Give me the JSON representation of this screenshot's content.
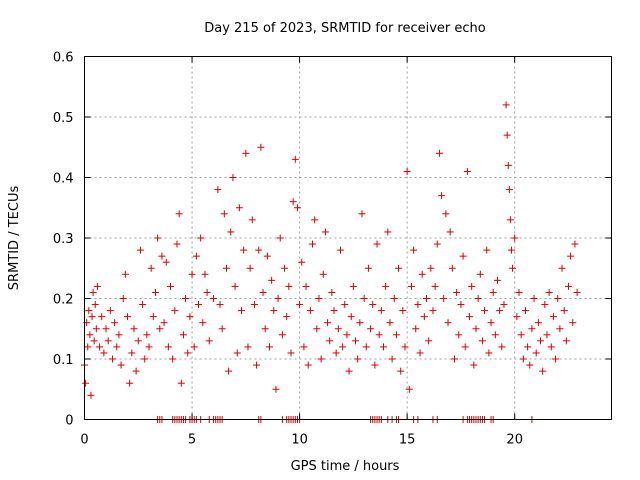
{
  "chart_data": {
    "type": "scatter",
    "title": "Day 215 of 2023, SRMTID for receiver echo",
    "xlabel": "GPS time / hours",
    "ylabel": "SRMTID / TECUs",
    "xlim": [
      0,
      24.5
    ],
    "ylim": [
      0,
      0.6
    ],
    "xticks": [
      0,
      5,
      10,
      15,
      20
    ],
    "xtick_labels": [
      "0",
      "5",
      "10",
      "15",
      "20"
    ],
    "yticks": [
      0,
      0.1,
      0.2,
      0.3,
      0.4,
      0.5,
      0.6
    ],
    "ytick_labels": [
      "0",
      "0.1",
      "0.2",
      "0.3",
      "0.4",
      "0.5",
      "0.6"
    ],
    "grid": true,
    "marker": "+",
    "color": "#dd0000",
    "series": [
      {
        "name": "SRMTID",
        "points": [
          [
            0.0,
            0.09
          ],
          [
            0.05,
            0.06
          ],
          [
            0.1,
            0.16
          ],
          [
            0.15,
            0.12
          ],
          [
            0.2,
            0.18
          ],
          [
            0.25,
            0.14
          ],
          [
            0.3,
            0.04
          ],
          [
            0.35,
            0.17
          ],
          [
            0.4,
            0.21
          ],
          [
            0.45,
            0.13
          ],
          [
            0.5,
            0.19
          ],
          [
            0.55,
            0.15
          ],
          [
            0.6,
            0.22
          ],
          [
            0.7,
            0.12
          ],
          [
            0.8,
            0.17
          ],
          [
            0.9,
            0.11
          ],
          [
            1.0,
            0.15
          ],
          [
            1.1,
            0.13
          ],
          [
            1.2,
            0.18
          ],
          [
            1.3,
            0.1
          ],
          [
            1.4,
            0.16
          ],
          [
            1.5,
            0.12
          ],
          [
            1.6,
            0.14
          ],
          [
            1.7,
            0.09
          ],
          [
            1.8,
            0.2
          ],
          [
            1.9,
            0.24
          ],
          [
            2.0,
            0.17
          ],
          [
            2.1,
            0.06
          ],
          [
            2.2,
            0.11
          ],
          [
            2.3,
            0.15
          ],
          [
            2.4,
            0.08
          ],
          [
            2.5,
            0.13
          ],
          [
            2.6,
            0.28
          ],
          [
            2.7,
            0.19
          ],
          [
            2.8,
            0.1
          ],
          [
            2.9,
            0.14
          ],
          [
            3.0,
            0.12
          ],
          [
            3.1,
            0.25
          ],
          [
            3.2,
            0.17
          ],
          [
            3.3,
            0.21
          ],
          [
            3.4,
            0.3
          ],
          [
            3.5,
            0.15
          ],
          [
            3.6,
            0.27
          ],
          [
            3.7,
            0.16
          ],
          [
            3.8,
            0.26
          ],
          [
            3.9,
            0.12
          ],
          [
            4.0,
            0.22
          ],
          [
            4.1,
            0.1
          ],
          [
            4.2,
            0.18
          ],
          [
            4.3,
            0.29
          ],
          [
            4.4,
            0.34
          ],
          [
            4.5,
            0.06
          ],
          [
            4.6,
            0.14
          ],
          [
            4.7,
            0.2
          ],
          [
            4.8,
            0.11
          ],
          [
            4.9,
            0.17
          ],
          [
            5.0,
            0.24
          ],
          [
            5.1,
            0.12
          ],
          [
            5.2,
            0.27
          ],
          [
            5.3,
            0.19
          ],
          [
            5.4,
            0.3
          ],
          [
            5.5,
            0.16
          ],
          [
            5.6,
            0.24
          ],
          [
            5.7,
            0.21
          ],
          [
            5.8,
            0.13
          ],
          [
            6.0,
            0.2
          ],
          [
            6.2,
            0.38
          ],
          [
            6.3,
            0.19
          ],
          [
            6.4,
            0.15
          ],
          [
            6.5,
            0.34
          ],
          [
            6.6,
            0.25
          ],
          [
            6.7,
            0.08
          ],
          [
            6.8,
            0.31
          ],
          [
            6.9,
            0.4
          ],
          [
            7.0,
            0.22
          ],
          [
            7.1,
            0.11
          ],
          [
            7.2,
            0.35
          ],
          [
            7.3,
            0.18
          ],
          [
            7.4,
            0.28
          ],
          [
            7.5,
            0.44
          ],
          [
            7.6,
            0.12
          ],
          [
            7.7,
            0.25
          ],
          [
            7.8,
            0.33
          ],
          [
            7.9,
            0.19
          ],
          [
            8.0,
            0.09
          ],
          [
            8.1,
            0.28
          ],
          [
            8.2,
            0.45
          ],
          [
            8.3,
            0.21
          ],
          [
            8.4,
            0.15
          ],
          [
            8.5,
            0.27
          ],
          [
            8.6,
            0.12
          ],
          [
            8.7,
            0.23
          ],
          [
            8.8,
            0.18
          ],
          [
            8.9,
            0.05
          ],
          [
            9.0,
            0.2
          ],
          [
            9.1,
            0.3
          ],
          [
            9.2,
            0.14
          ],
          [
            9.3,
            0.25
          ],
          [
            9.4,
            0.17
          ],
          [
            9.5,
            0.22
          ],
          [
            9.6,
            0.11
          ],
          [
            9.7,
            0.36
          ],
          [
            9.8,
            0.43
          ],
          [
            9.9,
            0.35
          ],
          [
            10.0,
            0.19
          ],
          [
            10.1,
            0.26
          ],
          [
            10.2,
            0.12
          ],
          [
            10.3,
            0.22
          ],
          [
            10.4,
            0.09
          ],
          [
            10.5,
            0.18
          ],
          [
            10.6,
            0.29
          ],
          [
            10.7,
            0.33
          ],
          [
            10.8,
            0.15
          ],
          [
            10.9,
            0.2
          ],
          [
            11.0,
            0.1
          ],
          [
            11.1,
            0.24
          ],
          [
            11.2,
            0.31
          ],
          [
            11.3,
            0.16
          ],
          [
            11.4,
            0.13
          ],
          [
            11.5,
            0.21
          ],
          [
            11.6,
            0.18
          ],
          [
            11.7,
            0.11
          ],
          [
            11.8,
            0.15
          ],
          [
            11.9,
            0.28
          ],
          [
            12.0,
            0.12
          ],
          [
            12.1,
            0.19
          ],
          [
            12.2,
            0.14
          ],
          [
            12.3,
            0.08
          ],
          [
            12.4,
            0.17
          ],
          [
            12.5,
            0.22
          ],
          [
            12.6,
            0.13
          ],
          [
            12.7,
            0.1
          ],
          [
            12.8,
            0.16
          ],
          [
            12.9,
            0.34
          ],
          [
            13.0,
            0.2
          ],
          [
            13.1,
            0.12
          ],
          [
            13.2,
            0.25
          ],
          [
            13.3,
            0.15
          ],
          [
            13.4,
            0.19
          ],
          [
            13.5,
            0.09
          ],
          [
            13.6,
            0.29
          ],
          [
            13.7,
            0.14
          ],
          [
            13.8,
            0.18
          ],
          [
            13.9,
            0.12
          ],
          [
            14.0,
            0.22
          ],
          [
            14.1,
            0.31
          ],
          [
            14.2,
            0.16
          ],
          [
            14.3,
            0.1
          ],
          [
            14.4,
            0.2
          ],
          [
            14.5,
            0.14
          ],
          [
            14.6,
            0.25
          ],
          [
            14.7,
            0.08
          ],
          [
            14.8,
            0.18
          ],
          [
            14.9,
            0.12
          ],
          [
            15.0,
            0.41
          ],
          [
            15.1,
            0.05
          ],
          [
            15.2,
            0.22
          ],
          [
            15.3,
            0.28
          ],
          [
            15.4,
            0.15
          ],
          [
            15.5,
            0.19
          ],
          [
            15.6,
            0.11
          ],
          [
            15.7,
            0.24
          ],
          [
            15.8,
            0.17
          ],
          [
            15.9,
            0.2
          ],
          [
            16.0,
            0.13
          ],
          [
            16.1,
            0.25
          ],
          [
            16.2,
            0.18
          ],
          [
            16.3,
            0.22
          ],
          [
            16.4,
            0.29
          ],
          [
            16.5,
            0.44
          ],
          [
            16.6,
            0.37
          ],
          [
            16.7,
            0.2
          ],
          [
            16.8,
            0.34
          ],
          [
            16.9,
            0.16
          ],
          [
            17.0,
            0.31
          ],
          [
            17.1,
            0.25
          ],
          [
            17.2,
            0.1
          ],
          [
            17.3,
            0.21
          ],
          [
            17.4,
            0.14
          ],
          [
            17.5,
            0.19
          ],
          [
            17.6,
            0.27
          ],
          [
            17.7,
            0.12
          ],
          [
            17.8,
            0.41
          ],
          [
            17.9,
            0.17
          ],
          [
            18.0,
            0.22
          ],
          [
            18.1,
            0.09
          ],
          [
            18.2,
            0.15
          ],
          [
            18.3,
            0.2
          ],
          [
            18.4,
            0.24
          ],
          [
            18.5,
            0.13
          ],
          [
            18.6,
            0.18
          ],
          [
            18.7,
            0.28
          ],
          [
            18.8,
            0.11
          ],
          [
            18.9,
            0.16
          ],
          [
            19.0,
            0.21
          ],
          [
            19.1,
            0.14
          ],
          [
            19.2,
            0.23
          ],
          [
            19.3,
            0.18
          ],
          [
            19.4,
            0.12
          ],
          [
            19.5,
            0.19
          ],
          [
            19.6,
            0.52
          ],
          [
            19.65,
            0.47
          ],
          [
            19.7,
            0.42
          ],
          [
            19.75,
            0.38
          ],
          [
            19.8,
            0.33
          ],
          [
            19.85,
            0.28
          ],
          [
            19.9,
            0.25
          ],
          [
            20.0,
            0.3
          ],
          [
            20.1,
            0.17
          ],
          [
            20.2,
            0.21
          ],
          [
            20.3,
            0.14
          ],
          [
            20.4,
            0.1
          ],
          [
            20.5,
            0.18
          ],
          [
            20.6,
            0.12
          ],
          [
            20.7,
            0.09
          ],
          [
            20.8,
            0.15
          ],
          [
            20.9,
            0.2
          ],
          [
            21.0,
            0.11
          ],
          [
            21.1,
            0.16
          ],
          [
            21.2,
            0.13
          ],
          [
            21.3,
            0.08
          ],
          [
            21.4,
            0.19
          ],
          [
            21.5,
            0.14
          ],
          [
            21.6,
            0.21
          ],
          [
            21.7,
            0.12
          ],
          [
            21.8,
            0.17
          ],
          [
            21.9,
            0.1
          ],
          [
            22.0,
            0.2
          ],
          [
            22.1,
            0.15
          ],
          [
            22.2,
            0.25
          ],
          [
            22.3,
            0.18
          ],
          [
            22.4,
            0.13
          ],
          [
            22.5,
            0.22
          ],
          [
            22.6,
            0.27
          ],
          [
            22.7,
            0.16
          ],
          [
            22.8,
            0.29
          ],
          [
            22.9,
            0.21
          ]
        ]
      }
    ],
    "zero_value_times": [
      3.4,
      3.5,
      3.6,
      4.1,
      4.2,
      4.3,
      4.4,
      4.5,
      4.6,
      4.7,
      4.9,
      5.0,
      5.1,
      5.2,
      5.4,
      5.8,
      6.0,
      6.1,
      6.2,
      6.3,
      6.4,
      8.1,
      8.2,
      9.2,
      9.4,
      9.5,
      9.6,
      9.7,
      9.8,
      9.9,
      10.0,
      13.3,
      13.4,
      13.5,
      13.6,
      13.7,
      13.8,
      14.1,
      14.3,
      14.5,
      14.6,
      15.3,
      15.5,
      16.2,
      16.4,
      17.6,
      17.8,
      17.9,
      18.0,
      18.1,
      18.2,
      18.3,
      18.4,
      18.5,
      18.6,
      18.9,
      19.0,
      20.8
    ]
  }
}
